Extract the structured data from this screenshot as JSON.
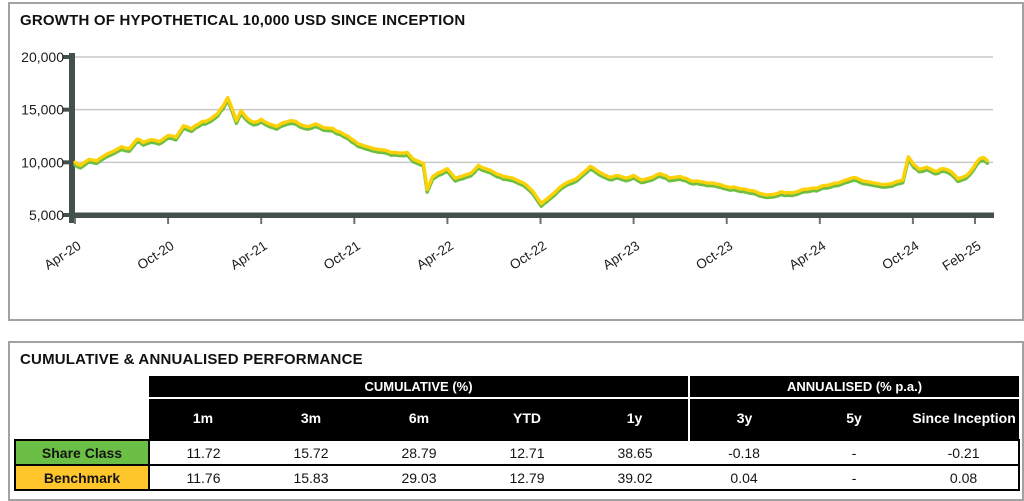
{
  "growth_chart": {
    "title": "GROWTH OF HYPOTHETICAL 10,000 USD SINCE INCEPTION"
  },
  "chart_data": {
    "type": "line",
    "title": "GROWTH OF HYPOTHETICAL 10,000 USD SINCE INCEPTION",
    "xlabel": "",
    "ylabel": "",
    "currency": "USD",
    "starting_value": 10000,
    "ylim": [
      5000,
      20000
    ],
    "grid": true,
    "legend_position": "none",
    "axis_color": "#43504e",
    "grid_color": "#c9c9c9",
    "label_color": "#1c1c1c",
    "yticks": [
      {
        "value": 20000,
        "label": "20,000"
      },
      {
        "value": 15000,
        "label": "15,000"
      },
      {
        "value": 10000,
        "label": "10,000"
      },
      {
        "value": 5000,
        "label": "5,000"
      }
    ],
    "xticks": [
      {
        "month": 0,
        "label": "Apr-20"
      },
      {
        "month": 6,
        "label": "Oct-20"
      },
      {
        "month": 12,
        "label": "Apr-21"
      },
      {
        "month": 18,
        "label": "Oct-21"
      },
      {
        "month": 24,
        "label": "Apr-22"
      },
      {
        "month": 30,
        "label": "Oct-22"
      },
      {
        "month": 36,
        "label": "Apr-23"
      },
      {
        "month": 42,
        "label": "Oct-23"
      },
      {
        "month": 48,
        "label": "Apr-24"
      },
      {
        "month": 54,
        "label": "Oct-24"
      },
      {
        "month": 58,
        "label": "Feb-25"
      }
    ],
    "x_unit": "months_since_inception",
    "series": [
      {
        "name": "Share Class",
        "color": "#FCD206",
        "points": [
          [
            0,
            10000
          ],
          [
            0.35,
            9720
          ],
          [
            0.9,
            10280
          ],
          [
            1.4,
            10150
          ],
          [
            1.9,
            10650
          ],
          [
            2.5,
            11080
          ],
          [
            3,
            11480
          ],
          [
            3.5,
            11300
          ],
          [
            4,
            12200
          ],
          [
            4.4,
            11880
          ],
          [
            4.9,
            12150
          ],
          [
            5.4,
            11980
          ],
          [
            6,
            12550
          ],
          [
            6.5,
            12380
          ],
          [
            7,
            13480
          ],
          [
            7.5,
            13180
          ],
          [
            8,
            13680
          ],
          [
            8.6,
            14020
          ],
          [
            9.2,
            14650
          ],
          [
            9.55,
            15350
          ],
          [
            9.85,
            16150
          ],
          [
            10.15,
            15000
          ],
          [
            10.4,
            13950
          ],
          [
            10.7,
            14900
          ],
          [
            11.05,
            14250
          ],
          [
            11.5,
            13800
          ],
          [
            12,
            14080
          ],
          [
            12.5,
            13650
          ],
          [
            13,
            13400
          ],
          [
            13.5,
            13780
          ],
          [
            14,
            13950
          ],
          [
            14.5,
            13600
          ],
          [
            15,
            13400
          ],
          [
            15.5,
            13650
          ],
          [
            16,
            13300
          ],
          [
            16.6,
            13230
          ],
          [
            17.1,
            12880
          ],
          [
            17.6,
            12480
          ],
          [
            18,
            12050
          ],
          [
            18.5,
            11650
          ],
          [
            19,
            11420
          ],
          [
            19.6,
            11200
          ],
          [
            20.2,
            11050
          ],
          [
            20.8,
            10900
          ],
          [
            21.4,
            10950
          ],
          [
            21.8,
            10300
          ],
          [
            22.2,
            10050
          ],
          [
            22.45,
            9900
          ],
          [
            22.7,
            7420
          ],
          [
            23.05,
            8650
          ],
          [
            23.4,
            9000
          ],
          [
            24,
            9400
          ],
          [
            24.5,
            8480
          ],
          [
            25,
            8700
          ],
          [
            25.5,
            8950
          ],
          [
            26,
            9720
          ],
          [
            26.5,
            9380
          ],
          [
            27,
            9050
          ],
          [
            27.6,
            8650
          ],
          [
            28.2,
            8500
          ],
          [
            28.9,
            8050
          ],
          [
            29.5,
            7250
          ],
          [
            30.05,
            6080
          ],
          [
            30.4,
            6500
          ],
          [
            30.9,
            7120
          ],
          [
            31.5,
            7900
          ],
          [
            32.1,
            8300
          ],
          [
            32.7,
            8950
          ],
          [
            33.2,
            9620
          ],
          [
            33.8,
            9050
          ],
          [
            34.4,
            8620
          ],
          [
            35,
            8750
          ],
          [
            35.5,
            8500
          ],
          [
            36,
            8760
          ],
          [
            36.5,
            8320
          ],
          [
            37,
            8500
          ],
          [
            37.7,
            8930
          ],
          [
            38.3,
            8500
          ],
          [
            39,
            8650
          ],
          [
            39.6,
            8300
          ],
          [
            40.3,
            8160
          ],
          [
            41,
            8030
          ],
          [
            41.6,
            7880
          ],
          [
            42,
            7700
          ],
          [
            42.7,
            7560
          ],
          [
            43.3,
            7400
          ],
          [
            44.1,
            7050
          ],
          [
            44.8,
            6930
          ],
          [
            45.5,
            7200
          ],
          [
            46.2,
            7090
          ],
          [
            47,
            7450
          ],
          [
            48,
            7660
          ],
          [
            48.7,
            7900
          ],
          [
            49.4,
            8160
          ],
          [
            50.2,
            8560
          ],
          [
            50.8,
            8220
          ],
          [
            51.5,
            8040
          ],
          [
            52.2,
            7890
          ],
          [
            52.9,
            8150
          ],
          [
            53.35,
            8320
          ],
          [
            53.7,
            10520
          ],
          [
            54.05,
            9780
          ],
          [
            54.4,
            9350
          ],
          [
            54.9,
            9550
          ],
          [
            55.4,
            9160
          ],
          [
            56,
            9400
          ],
          [
            56.5,
            9060
          ],
          [
            56.9,
            8430
          ],
          [
            57.4,
            8700
          ],
          [
            57.9,
            9500
          ],
          [
            58.3,
            10340
          ],
          [
            58.55,
            10460
          ],
          [
            58.8,
            10160
          ]
        ]
      },
      {
        "name": "Benchmark",
        "color": "#6FBE44",
        "derived_from": "Share Class",
        "offset_usd": -250
      }
    ],
    "render": {
      "jitter_amplitude_usd": 100,
      "jitter_step_months": 0.22,
      "jitter_skip_delta_usd": 850,
      "line_width": 3.4
    }
  },
  "performance_table": {
    "title": "CUMULATIVE & ANNUALISED PERFORMANCE",
    "groups": [
      {
        "label": "CUMULATIVE (%)",
        "span": 5
      },
      {
        "label": "ANNUALISED (% p.a.)",
        "span": 3
      }
    ],
    "columns": [
      "1m",
      "3m",
      "6m",
      "YTD",
      "1y",
      "3y",
      "5y",
      "Since Inception"
    ],
    "rows": [
      {
        "label": "Share Class",
        "color": "#6CBF45",
        "values": [
          "11.72",
          "15.72",
          "28.79",
          "12.71",
          "38.65",
          "-0.18",
          "-",
          "-0.21"
        ]
      },
      {
        "label": "Benchmark",
        "color": "#FFC62B",
        "values": [
          "11.76",
          "15.83",
          "29.03",
          "12.79",
          "39.02",
          "0.04",
          "-",
          "0.08"
        ]
      }
    ]
  }
}
